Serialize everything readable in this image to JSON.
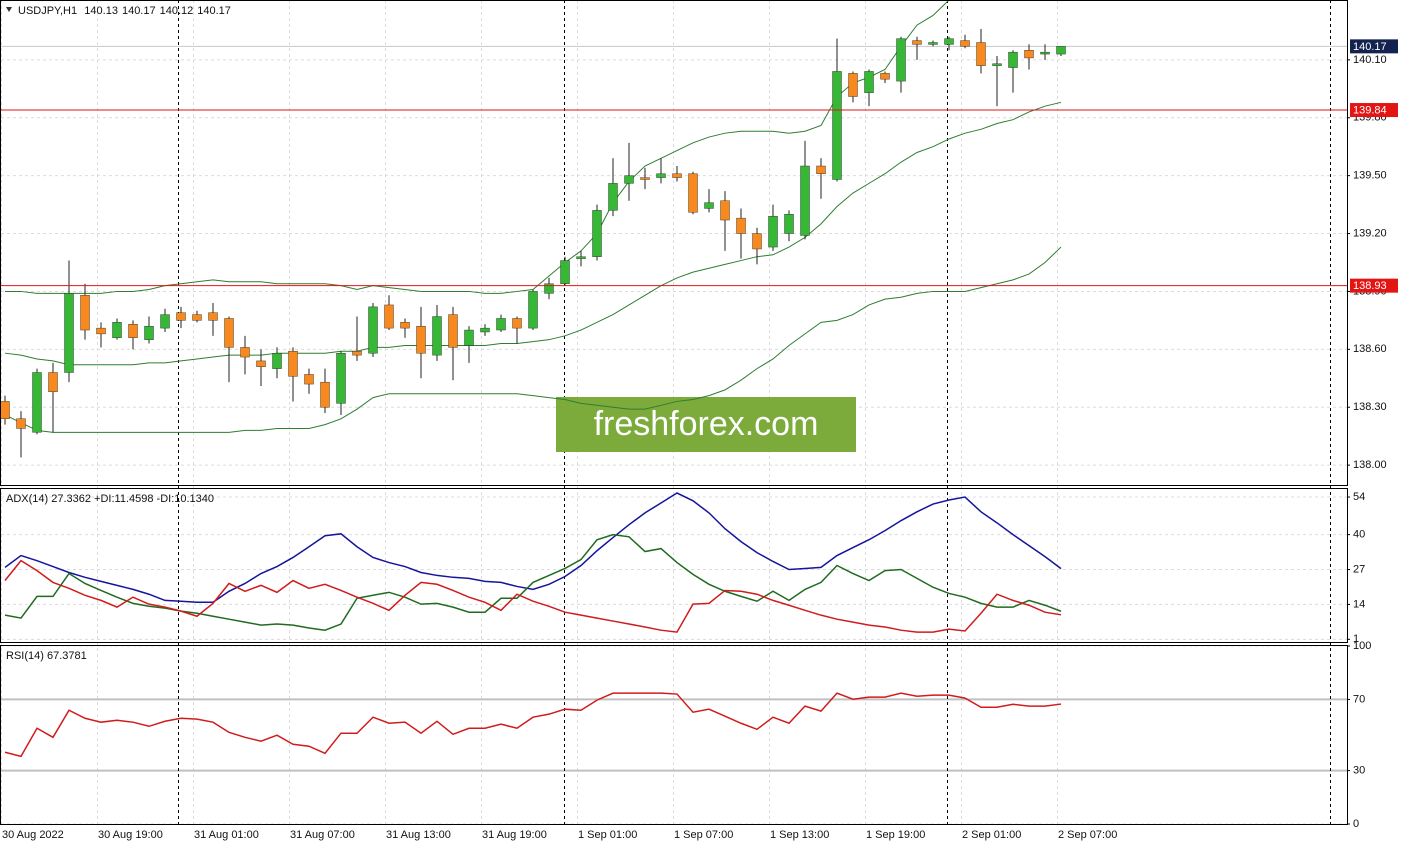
{
  "chart_data": [
    {
      "type": "candlestick",
      "title": "USDJPY,H1",
      "watermark": "freshforex.com",
      "categories": [
        "30 Aug 2022",
        null,
        null,
        null,
        null,
        null,
        "30 Aug 19:00",
        null,
        null,
        null,
        null,
        null,
        "31 Aug 01:00",
        null,
        null,
        null,
        null,
        null,
        "31 Aug 07:00",
        null,
        null,
        null,
        null,
        null,
        "31 Aug 13:00",
        null,
        null,
        null,
        null,
        null,
        "31 Aug 19:00",
        null,
        null,
        null,
        null,
        null,
        "1 Sep 01:00",
        null,
        null,
        null,
        null,
        null,
        "1 Sep 07:00",
        null,
        null,
        null,
        null,
        null,
        "1 Sep 13:00",
        null,
        null,
        null,
        null,
        null,
        "1 Sep 19:00",
        null,
        null,
        null,
        null,
        null,
        "2 Sep 01:00",
        null,
        null,
        null,
        null,
        null,
        "2 Sep 07:00"
      ],
      "open": [
        138.33,
        138.24,
        138.17,
        138.48,
        138.48,
        138.88,
        138.71,
        138.66,
        138.73,
        138.65,
        138.71,
        138.79,
        138.78,
        138.79,
        138.76,
        138.61,
        138.54,
        138.5,
        138.59,
        138.47,
        138.43,
        138.32,
        138.59,
        138.58,
        138.83,
        138.74,
        138.72,
        138.57,
        138.78,
        138.62,
        138.69,
        138.7,
        138.76,
        138.71,
        138.89,
        138.94,
        139.07,
        139.08,
        139.32,
        139.46,
        139.49,
        139.49,
        139.51,
        139.51,
        139.33,
        139.37,
        139.28,
        139.2,
        139.13,
        139.2,
        139.19,
        139.55,
        139.48,
        140.03,
        139.93,
        140.03,
        139.99,
        140.2,
        140.18,
        140.18,
        140.2,
        140.19,
        140.07,
        140.06,
        140.15,
        140.13,
        140.13
      ],
      "high": [
        138.36,
        138.28,
        138.5,
        138.53,
        139.06,
        138.94,
        138.74,
        138.76,
        138.75,
        138.77,
        138.81,
        138.82,
        138.8,
        138.84,
        138.77,
        138.67,
        138.6,
        138.61,
        138.61,
        138.5,
        138.5,
        138.59,
        138.77,
        138.84,
        138.88,
        138.76,
        138.82,
        138.83,
        138.82,
        138.72,
        138.73,
        138.78,
        138.77,
        138.91,
        138.97,
        139.08,
        139.11,
        139.35,
        139.59,
        139.67,
        139.54,
        139.59,
        139.55,
        139.52,
        139.43,
        139.42,
        139.33,
        139.23,
        139.35,
        139.32,
        139.68,
        139.59,
        140.21,
        140.04,
        140.05,
        140.04,
        140.22,
        140.22,
        140.2,
        140.22,
        140.23,
        140.26,
        140.12,
        140.15,
        140.18,
        140.18,
        140.17
      ],
      "low": [
        138.21,
        138.04,
        138.16,
        138.17,
        138.43,
        138.65,
        138.61,
        138.65,
        138.6,
        138.63,
        138.69,
        138.71,
        138.74,
        138.67,
        138.43,
        138.47,
        138.41,
        138.45,
        138.33,
        138.37,
        138.27,
        138.26,
        138.54,
        138.56,
        138.7,
        138.66,
        138.45,
        138.54,
        138.44,
        138.53,
        138.67,
        138.69,
        138.63,
        138.7,
        138.86,
        138.93,
        139.03,
        139.06,
        139.29,
        139.37,
        139.43,
        139.46,
        139.47,
        139.3,
        139.31,
        139.11,
        139.07,
        139.04,
        139.11,
        139.16,
        139.17,
        139.38,
        139.47,
        139.88,
        139.86,
        139.98,
        139.93,
        140.1,
        140.17,
        140.15,
        140.16,
        140.03,
        139.86,
        139.93,
        140.05,
        140.1,
        140.12
      ],
      "close": [
        138.24,
        138.19,
        138.48,
        138.38,
        138.89,
        138.7,
        138.68,
        138.74,
        138.66,
        138.72,
        138.78,
        138.75,
        138.75,
        138.75,
        138.61,
        138.56,
        138.51,
        138.58,
        138.46,
        138.42,
        138.3,
        138.58,
        138.57,
        138.82,
        138.71,
        138.71,
        138.58,
        138.77,
        138.61,
        138.7,
        138.71,
        138.76,
        138.71,
        138.9,
        138.94,
        139.06,
        139.08,
        139.32,
        139.46,
        139.5,
        139.48,
        139.51,
        139.49,
        139.31,
        139.36,
        139.27,
        139.2,
        139.12,
        139.29,
        139.3,
        139.55,
        139.51,
        140.04,
        139.91,
        140.04,
        140.0,
        140.21,
        140.18,
        140.19,
        140.21,
        140.17,
        140.07,
        140.08,
        140.14,
        140.11,
        140.14,
        140.17
      ],
      "up_color": "#36b836",
      "down_color": "#f7891f",
      "wick_color": "#222222",
      "lines": [
        {
          "color": "#2e7d32",
          "values": [
            138.9,
            138.9,
            138.89,
            138.89,
            138.89,
            138.89,
            138.89,
            138.9,
            138.9,
            138.91,
            138.93,
            138.94,
            138.95,
            138.96,
            138.95,
            138.95,
            138.95,
            138.94,
            138.94,
            138.94,
            138.94,
            138.93,
            138.91,
            138.93,
            138.92,
            138.91,
            138.9,
            138.9,
            138.9,
            138.9,
            138.89,
            138.89,
            138.9,
            138.91,
            138.98,
            139.05,
            139.11,
            139.2,
            139.36,
            139.47,
            139.55,
            139.59,
            139.63,
            139.67,
            139.7,
            139.72,
            139.73,
            139.73,
            139.73,
            139.72,
            139.73,
            139.76,
            139.91,
            139.98,
            140.01,
            140.05,
            140.17,
            140.28,
            140.33,
            140.41,
            null,
            null,
            null,
            null,
            null,
            null,
            null
          ]
        },
        {
          "color": "#2e7d32",
          "values": [
            138.58,
            138.57,
            138.55,
            138.54,
            138.52,
            138.52,
            138.52,
            138.52,
            138.52,
            138.53,
            138.53,
            138.54,
            138.55,
            138.56,
            138.57,
            138.57,
            138.57,
            138.58,
            138.58,
            138.58,
            138.58,
            138.59,
            138.59,
            138.61,
            138.61,
            138.62,
            138.62,
            138.62,
            138.62,
            138.62,
            138.62,
            138.63,
            138.63,
            138.64,
            138.65,
            138.67,
            138.7,
            138.74,
            138.78,
            138.83,
            138.88,
            138.93,
            138.97,
            139.0,
            139.02,
            139.04,
            139.06,
            139.08,
            139.09,
            139.13,
            139.18,
            139.25,
            139.34,
            139.41,
            139.46,
            139.51,
            139.57,
            139.62,
            139.65,
            139.69,
            139.72,
            139.74,
            139.77,
            139.79,
            139.83,
            139.86,
            139.88
          ]
        },
        {
          "color": "#2e7d32",
          "values": [
            138.26,
            138.22,
            138.18,
            138.17,
            138.17,
            138.17,
            138.17,
            138.17,
            138.17,
            138.17,
            138.17,
            138.17,
            138.17,
            138.17,
            138.17,
            138.18,
            138.18,
            138.19,
            138.19,
            138.19,
            138.21,
            138.24,
            138.29,
            138.35,
            138.37,
            138.37,
            138.37,
            138.37,
            138.37,
            138.37,
            138.37,
            138.37,
            138.37,
            138.36,
            138.35,
            138.34,
            138.32,
            138.31,
            138.3,
            138.29,
            138.29,
            138.31,
            138.33,
            138.34,
            138.36,
            138.39,
            138.44,
            138.5,
            138.55,
            138.62,
            138.68,
            138.74,
            138.75,
            138.78,
            138.83,
            138.86,
            138.87,
            138.89,
            138.9,
            138.9,
            138.9,
            138.92,
            138.94,
            138.96,
            138.99,
            139.05,
            139.13
          ]
        }
      ],
      "levels": [
        139.84,
        138.93
      ],
      "level_color": "#e31414",
      "price_tag_color": "#14224f",
      "ylim": [
        137.897,
        140.405
      ],
      "yticks": [
        {
          "value": 140.1,
          "label": "140.10"
        },
        {
          "value": 139.8,
          "label": "139.80"
        },
        {
          "value": 139.5,
          "label": "139.50"
        },
        {
          "value": 139.2,
          "label": "139.20"
        },
        {
          "value": 138.9,
          "label": "138.90"
        },
        {
          "value": 138.6,
          "label": "138.60"
        },
        {
          "value": 138.3,
          "label": "138.30"
        },
        {
          "value": 138,
          "label": "138.00"
        }
      ],
      "grid": true
    },
    {
      "type": "line",
      "title": "ADX(14) 27.3362 +DI:11.4598 -DI:10.1340",
      "series": [
        {
          "color": "#14149c",
          "values": [
            27.8,
            32.2,
            30.3,
            28.1,
            25.9,
            24.1,
            22.6,
            21.1,
            19.6,
            17.8,
            15.5,
            15.2,
            14.8,
            14.8,
            18.9,
            21.8,
            25.5,
            28.1,
            31.5,
            35.5,
            39.6,
            40.3,
            35.5,
            31.5,
            29.6,
            28.1,
            25.9,
            24.8,
            24.1,
            23.7,
            22.6,
            22.2,
            20.7,
            19.6,
            21.5,
            24.4,
            28.5,
            34.0,
            38.9,
            43.7,
            48.1,
            51.8,
            55.5,
            52.6,
            48.1,
            42.2,
            37.4,
            33.3,
            30.0,
            27.0,
            27.4,
            27.8,
            32.2,
            35.2,
            38.1,
            41.5,
            45.2,
            48.5,
            51.4,
            52.9,
            54.0,
            48.5,
            44.4,
            40.0,
            35.9,
            31.8,
            27.34
          ]
        },
        {
          "color": "#1f6b1f",
          "values": [
            10.0,
            8.9,
            17.0,
            17.0,
            25.5,
            21.8,
            19.2,
            16.7,
            14.4,
            13.3,
            12.6,
            11.5,
            10.7,
            9.6,
            8.5,
            7.4,
            6.3,
            6.7,
            6.3,
            5.2,
            4.4,
            6.7,
            16.3,
            17.4,
            18.5,
            16.7,
            14.1,
            14.4,
            13.0,
            11.1,
            11.1,
            16.3,
            16.3,
            22.2,
            24.8,
            27.4,
            30.7,
            38.1,
            40.0,
            39.2,
            33.7,
            34.8,
            29.6,
            25.2,
            21.5,
            18.9,
            17.0,
            15.2,
            18.9,
            15.5,
            19.6,
            22.2,
            28.5,
            25.5,
            22.9,
            26.6,
            27.0,
            23.7,
            20.4,
            18.1,
            16.7,
            14.4,
            13.0,
            13.0,
            15.5,
            13.7,
            11.46
          ]
        },
        {
          "color": "#d01c1c",
          "values": [
            22.9,
            30.3,
            26.6,
            22.2,
            20.0,
            17.4,
            15.5,
            13.0,
            16.7,
            14.1,
            13.0,
            11.5,
            9.6,
            14.4,
            21.8,
            18.9,
            21.1,
            18.5,
            22.9,
            20.0,
            21.5,
            19.2,
            16.7,
            14.4,
            11.8,
            17.4,
            22.2,
            21.5,
            19.2,
            16.7,
            14.8,
            11.8,
            17.8,
            15.2,
            13.3,
            11.1,
            10.0,
            8.9,
            7.8,
            6.7,
            5.6,
            4.4,
            3.7,
            14.1,
            14.4,
            19.2,
            18.9,
            17.8,
            15.5,
            13.7,
            11.8,
            10.0,
            8.5,
            7.4,
            6.3,
            5.6,
            4.4,
            3.7,
            3.7,
            4.8,
            4.1,
            10.7,
            17.8,
            15.5,
            13.7,
            11.1,
            10.13
          ]
        }
      ],
      "ylim": [
        0,
        57
      ],
      "yticks": [
        54,
        40,
        27,
        14,
        1
      ],
      "grid": true
    },
    {
      "type": "line",
      "title": "RSI(14) 67.3781",
      "series": [
        {
          "color": "#d01c1c",
          "values": [
            40.3,
            38.0,
            53.8,
            48.7,
            63.9,
            59.4,
            57.2,
            58.3,
            57.2,
            54.9,
            57.7,
            59.4,
            58.9,
            57.2,
            51.5,
            48.7,
            46.5,
            49.9,
            44.8,
            43.7,
            39.7,
            51.0,
            51.0,
            60.0,
            56.6,
            57.2,
            51.0,
            57.7,
            50.4,
            53.8,
            53.8,
            56.1,
            53.8,
            60.0,
            61.7,
            64.5,
            63.9,
            69.6,
            73.5,
            73.5,
            73.5,
            73.5,
            73.0,
            62.8,
            64.5,
            60.6,
            56.6,
            53.2,
            60.0,
            56.6,
            66.2,
            63.4,
            73.5,
            70.1,
            71.3,
            71.3,
            73.5,
            71.8,
            72.4,
            72.4,
            70.7,
            65.6,
            65.6,
            67.3,
            66.2,
            66.2,
            67.38
          ]
        }
      ],
      "levels": [
        70,
        30
      ],
      "level_color": "#c0c0c0",
      "ylim": [
        0,
        100
      ],
      "yticks": [
        100,
        70,
        30,
        0
      ],
      "grid": true
    }
  ]
}
